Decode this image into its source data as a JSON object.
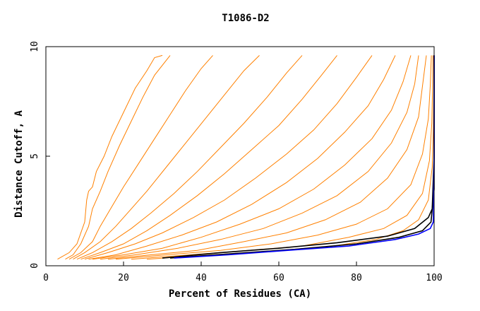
{
  "chart_data": {
    "type": "line",
    "title": "T1086-D2",
    "xlabel": "Percent of Residues (CA)",
    "ylabel": "Distance Cutoff, A",
    "xlim": [
      0,
      100
    ],
    "ylim": [
      0,
      10
    ],
    "x_ticks": [
      "0",
      "20",
      "40",
      "60",
      "80",
      "100"
    ],
    "y_ticks": [
      "0",
      "5",
      "10"
    ],
    "grid": false,
    "legend": "none",
    "colors": {
      "models": "#ff8000",
      "best_models": "#000000",
      "highlight": "#0000ff",
      "frame": "#000000"
    },
    "series": [
      {
        "group": "models",
        "x": [
          3,
          6,
          8,
          10,
          10.5,
          11,
          12,
          13,
          15,
          17,
          20,
          23,
          26,
          28,
          30
        ],
        "y": [
          0.3,
          0.6,
          1.0,
          2.0,
          3.0,
          3.4,
          3.6,
          4.3,
          5.0,
          5.9,
          7.0,
          8.1,
          8.9,
          9.5,
          9.6
        ]
      },
      {
        "group": "models",
        "x": [
          5,
          7,
          9,
          11,
          12,
          14,
          16,
          19,
          22,
          25,
          28,
          32
        ],
        "y": [
          0.3,
          0.5,
          1.0,
          1.8,
          2.6,
          3.4,
          4.3,
          5.5,
          6.6,
          7.7,
          8.7,
          9.6
        ]
      },
      {
        "group": "models",
        "x": [
          6,
          9,
          12,
          14,
          17,
          20,
          24,
          28,
          32,
          36,
          40,
          43
        ],
        "y": [
          0.3,
          0.6,
          1.1,
          1.8,
          2.7,
          3.6,
          4.7,
          5.8,
          6.9,
          8.0,
          9.0,
          9.6
        ]
      },
      {
        "group": "models",
        "x": [
          7,
          10,
          14,
          18,
          22,
          26,
          31,
          36,
          41,
          46,
          51,
          55
        ],
        "y": [
          0.3,
          0.6,
          1.1,
          1.8,
          2.6,
          3.4,
          4.5,
          5.6,
          6.7,
          7.8,
          8.9,
          9.6
        ]
      },
      {
        "group": "models",
        "x": [
          8,
          12,
          17,
          22,
          27,
          33,
          39,
          45,
          51,
          57,
          62,
          66
        ],
        "y": [
          0.3,
          0.6,
          1.1,
          1.7,
          2.4,
          3.3,
          4.3,
          5.4,
          6.5,
          7.7,
          8.8,
          9.6
        ]
      },
      {
        "group": "models",
        "x": [
          9,
          14,
          20,
          26,
          32,
          39,
          46,
          53,
          60,
          66,
          71,
          75
        ],
        "y": [
          0.3,
          0.6,
          1.0,
          1.6,
          2.3,
          3.2,
          4.2,
          5.3,
          6.4,
          7.6,
          8.7,
          9.6
        ]
      },
      {
        "group": "models",
        "x": [
          10,
          16,
          23,
          30,
          38,
          46,
          54,
          62,
          69,
          75,
          80,
          84
        ],
        "y": [
          0.3,
          0.6,
          1.0,
          1.5,
          2.2,
          3.0,
          4.0,
          5.1,
          6.2,
          7.4,
          8.6,
          9.6
        ]
      },
      {
        "group": "models",
        "x": [
          11,
          18,
          26,
          35,
          44,
          53,
          62,
          70,
          77,
          83,
          87,
          90
        ],
        "y": [
          0.3,
          0.5,
          0.9,
          1.4,
          2.0,
          2.8,
          3.8,
          4.9,
          6.1,
          7.3,
          8.5,
          9.6
        ]
      },
      {
        "group": "models",
        "x": [
          12,
          20,
          30,
          40,
          50,
          60,
          69,
          77,
          84,
          89,
          92,
          94
        ],
        "y": [
          0.3,
          0.5,
          0.8,
          1.3,
          1.9,
          2.6,
          3.5,
          4.6,
          5.8,
          7.1,
          8.4,
          9.6
        ]
      },
      {
        "group": "models",
        "x": [
          14,
          23,
          34,
          45,
          56,
          66,
          75,
          83,
          89,
          93,
          95,
          96
        ],
        "y": [
          0.3,
          0.5,
          0.8,
          1.2,
          1.7,
          2.4,
          3.2,
          4.3,
          5.6,
          7.0,
          8.3,
          9.6
        ]
      },
      {
        "group": "models",
        "x": [
          16,
          27,
          39,
          51,
          62,
          72,
          81,
          88,
          93,
          96,
          97,
          98
        ],
        "y": [
          0.3,
          0.5,
          0.7,
          1.1,
          1.5,
          2.1,
          2.9,
          4.0,
          5.3,
          6.8,
          8.2,
          9.6
        ]
      },
      {
        "group": "models",
        "x": [
          18,
          31,
          45,
          58,
          70,
          80,
          88,
          94,
          97,
          98.5,
          99,
          99.3
        ],
        "y": [
          0.3,
          0.5,
          0.7,
          1.0,
          1.4,
          1.9,
          2.6,
          3.7,
          5.1,
          6.7,
          8.2,
          9.6
        ]
      },
      {
        "group": "models",
        "x": [
          22,
          37,
          52,
          66,
          78,
          87,
          93,
          97,
          98.8,
          99.4,
          99.6,
          99.7
        ],
        "y": [
          0.3,
          0.5,
          0.7,
          0.9,
          1.3,
          1.7,
          2.3,
          3.3,
          4.8,
          6.5,
          8.1,
          9.6
        ]
      },
      {
        "group": "models",
        "x": [
          26,
          43,
          60,
          74,
          85,
          92,
          96,
          98.5,
          99.5,
          99.8,
          99.9,
          100
        ],
        "y": [
          0.3,
          0.5,
          0.7,
          0.9,
          1.2,
          1.6,
          2.1,
          3.0,
          4.5,
          6.3,
          8.0,
          9.6
        ]
      },
      {
        "group": "best_models",
        "x": [
          30,
          45,
          60,
          75,
          88,
          95,
          98.5,
          99.5,
          100,
          100
        ],
        "y": [
          0.35,
          0.6,
          0.8,
          1.05,
          1.35,
          1.7,
          2.2,
          2.6,
          5.0,
          9.6
        ]
      },
      {
        "group": "best_models",
        "x": [
          32,
          48,
          64,
          80,
          91,
          97,
          99.2,
          100,
          100
        ],
        "y": [
          0.35,
          0.55,
          0.75,
          1.0,
          1.3,
          1.6,
          2.0,
          3.5,
          9.6
        ]
      },
      {
        "group": "highlight",
        "x": [
          33,
          47,
          62,
          78,
          90,
          96,
          99,
          99.8,
          100,
          100
        ],
        "y": [
          0.35,
          0.5,
          0.7,
          0.9,
          1.2,
          1.45,
          1.7,
          2.0,
          5.0,
          9.6
        ]
      }
    ]
  }
}
